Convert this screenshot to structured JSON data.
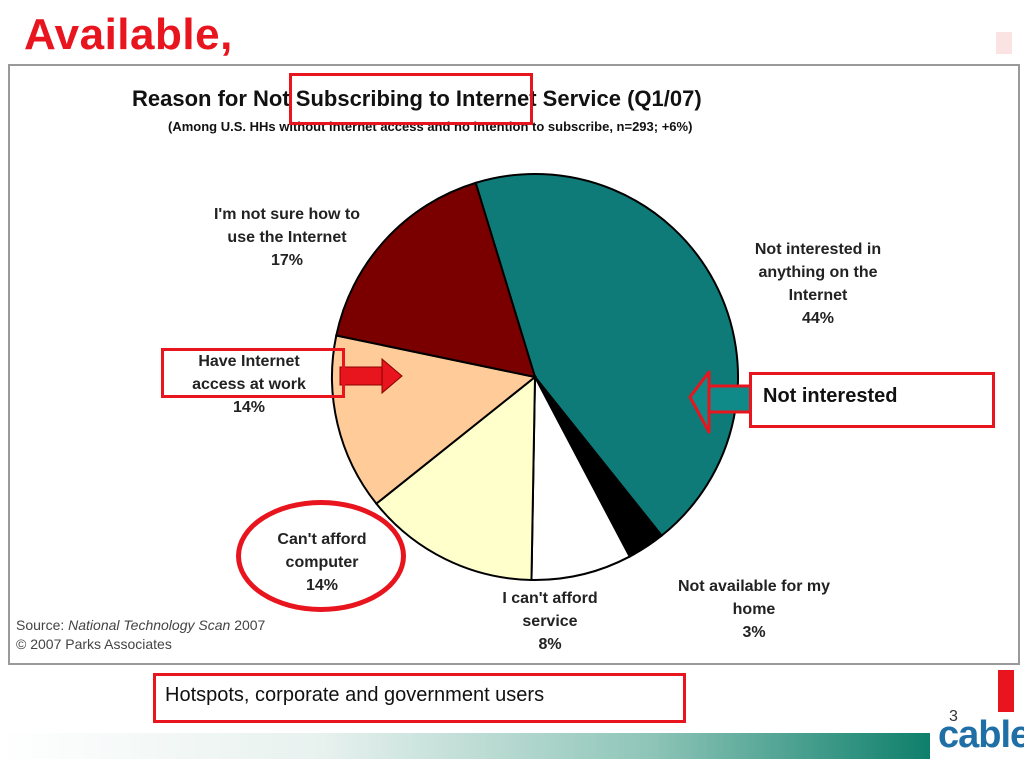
{
  "slide": {
    "title": "Available,",
    "callout": "Not interested",
    "bottom_note": "Hotspots, corporate and government users",
    "page_number": "3",
    "logo_text": "cable"
  },
  "colors": {
    "accent_red": "#e8141e",
    "teal": "#0f7b78",
    "dark_red": "#7a0000",
    "peach": "#ffcc99",
    "cream": "#ffffcc",
    "white": "#ffffff",
    "black": "#000000"
  },
  "chart_data": {
    "type": "pie",
    "title": "Reason for Not Subscribing to Internet Service (Q1/07)",
    "subtitle": "(Among U.S. HHs without internet access and no intention to subscribe, n=293; +6%)",
    "slices": [
      {
        "label": "Not interested in anything on the Internet",
        "display_lines": [
          "Not interested in",
          "anything on the",
          "Internet"
        ],
        "pct_label": "44%",
        "value": 44,
        "color": "#0f7b78"
      },
      {
        "label": "Not available for my home",
        "display_lines": [
          "Not available for my",
          "home"
        ],
        "pct_label": "3%",
        "value": 3,
        "color": "#000000"
      },
      {
        "label": "I can't afford service",
        "display_lines": [
          "I can't afford",
          "service"
        ],
        "pct_label": "8%",
        "value": 8,
        "color": "#ffffff"
      },
      {
        "label": "Can't afford computer",
        "display_lines": [
          "Can't afford",
          "computer"
        ],
        "pct_label": "14%",
        "value": 14,
        "color": "#ffffcc"
      },
      {
        "label": "Have Internet access at work",
        "display_lines": [
          "Have Internet",
          "access at work"
        ],
        "pct_label": "14%",
        "value": 14,
        "color": "#ffcc99"
      },
      {
        "label": "I'm not sure how to use the Internet",
        "display_lines": [
          "I'm not sure how to",
          "use the Internet"
        ],
        "pct_label": "17%",
        "value": 17,
        "color": "#7a0000"
      }
    ],
    "source_label": "Source:",
    "source_name": "National Technology Scan",
    "source_year": "2007",
    "copyright": "© 2007 Parks Associates"
  }
}
